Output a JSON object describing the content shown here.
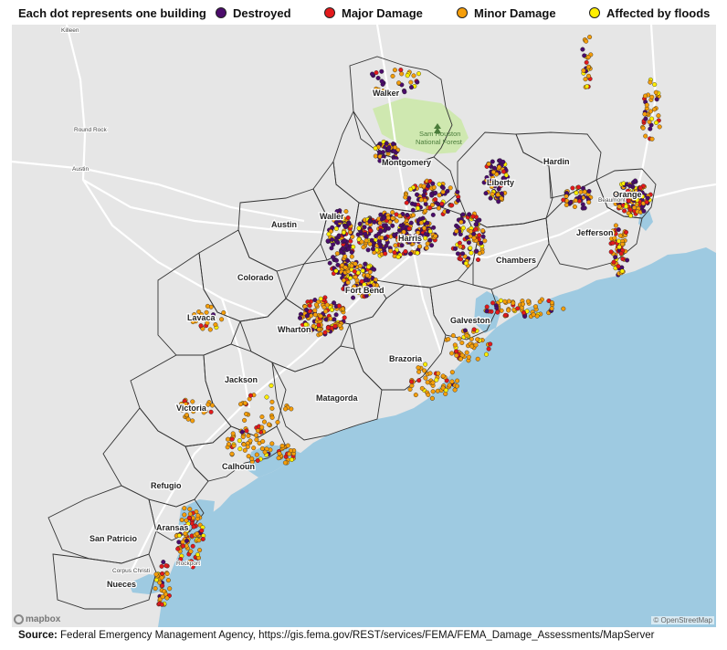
{
  "legend": {
    "intro": "Each dot represents one building",
    "items": [
      {
        "label": "Destroyed",
        "color": "#4b0c6b"
      },
      {
        "label": "Major Damage",
        "color": "#e31a1c"
      },
      {
        "label": "Minor Damage",
        "color": "#f59e0b"
      },
      {
        "label": "Affected by floods",
        "color": "#ffee00"
      }
    ]
  },
  "map": {
    "water_color": "#9ecae1",
    "land_color": "#e6e6e6",
    "counties": [
      "Walker",
      "Montgomery",
      "Liberty",
      "Hardin",
      "Orange",
      "Jefferson",
      "Austin",
      "Waller",
      "Harris",
      "Chambers",
      "Colorado",
      "Fort Bend",
      "Galveston",
      "Lavaca",
      "Wharton",
      "Brazoria",
      "Jackson",
      "Matagorda",
      "Victoria",
      "Calhoun",
      "Refugio",
      "Aransas",
      "San Patricio",
      "Nueces"
    ],
    "cities": [
      "Killeen",
      "Round Rock",
      "Austin",
      "Beaumont",
      "Corpus Christi",
      "Rockport"
    ],
    "park": "Sam Houston National Forest",
    "attribution_left": "mapbox",
    "attribution_right": "© OpenStreetMap"
  },
  "source": {
    "label": "Source:",
    "text": " Federal Emergency Management Agency, https://gis.fema.gov/REST/services/FEMA/FEMA_Damage_Assessments/MapServer"
  }
}
